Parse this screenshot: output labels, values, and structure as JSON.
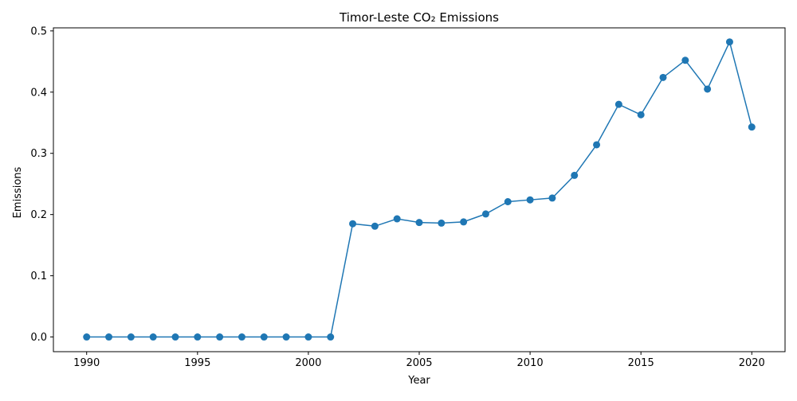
{
  "chart_data": {
    "type": "line",
    "title": "Timor-Leste CO₂ Emissions",
    "xlabel": "Year",
    "ylabel": "Emissions",
    "xlim": [
      1988.5,
      2021.5
    ],
    "ylim": [
      -0.024,
      0.505
    ],
    "x_ticks": [
      1990,
      1995,
      2000,
      2005,
      2010,
      2015,
      2020
    ],
    "x_tick_labels": [
      "1990",
      "1995",
      "2000",
      "2005",
      "2010",
      "2015",
      "2020"
    ],
    "y_ticks": [
      0.0,
      0.1,
      0.2,
      0.3,
      0.4,
      0.5
    ],
    "y_tick_labels": [
      "0.0",
      "0.1",
      "0.2",
      "0.3",
      "0.4",
      "0.5"
    ],
    "grid": false,
    "legend": "none",
    "series": [
      {
        "color": "#1f77b4",
        "marker": "circle",
        "x": [
          1990,
          1991,
          1992,
          1993,
          1994,
          1995,
          1996,
          1997,
          1998,
          1999,
          2000,
          2001,
          2002,
          2003,
          2004,
          2005,
          2006,
          2007,
          2008,
          2009,
          2010,
          2011,
          2012,
          2013,
          2014,
          2015,
          2016,
          2017,
          2018,
          2019,
          2020
        ],
        "values": [
          0.0,
          0.0,
          0.0,
          0.0,
          0.0,
          0.0,
          0.0,
          0.0,
          0.0,
          0.0,
          0.0,
          0.0,
          0.185,
          0.181,
          0.193,
          0.187,
          0.186,
          0.188,
          0.201,
          0.221,
          0.224,
          0.227,
          0.264,
          0.314,
          0.38,
          0.363,
          0.424,
          0.452,
          0.405,
          0.482,
          0.343
        ]
      }
    ]
  }
}
